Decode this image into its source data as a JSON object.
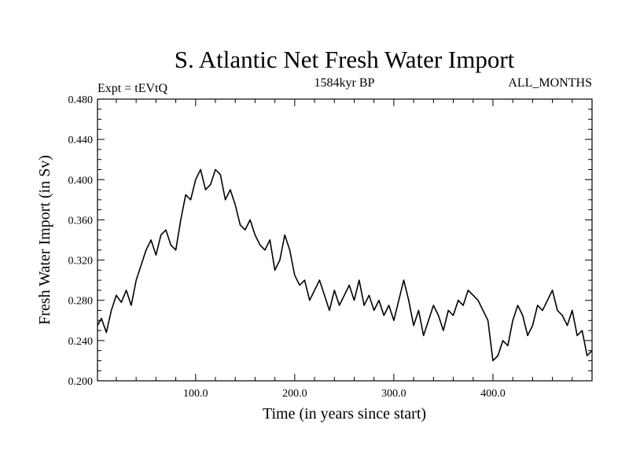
{
  "chart_data": {
    "type": "line",
    "title": "S. Atlantic Net Fresh Water Import",
    "left_annotation": "Expt = tEVtQ",
    "center_annotation": "1584kyr BP",
    "right_annotation": "ALL_MONTHS",
    "xlabel": "Time (in years since start)",
    "ylabel": "Fresh Water Import (in Sv)",
    "xlim": [
      1,
      500
    ],
    "ylim": [
      0.2,
      0.48
    ],
    "x_ticks": [
      100,
      200,
      300,
      400
    ],
    "x_tick_labels": [
      "100.0",
      "200.0",
      "300.0",
      "400.0"
    ],
    "y_ticks": [
      0.2,
      0.24,
      0.28,
      0.32,
      0.36,
      0.4,
      0.44,
      0.48
    ],
    "y_tick_labels": [
      "0.200",
      "0.240",
      "0.280",
      "0.320",
      "0.360",
      "0.400",
      "0.440",
      "0.480"
    ],
    "grid": false,
    "series": [
      {
        "name": "Fresh Water Import",
        "x": [
          1,
          5,
          10,
          15,
          20,
          25,
          30,
          35,
          40,
          45,
          50,
          55,
          60,
          65,
          70,
          75,
          80,
          85,
          90,
          95,
          100,
          105,
          110,
          115,
          120,
          125,
          130,
          135,
          140,
          145,
          150,
          155,
          160,
          165,
          170,
          175,
          180,
          185,
          190,
          195,
          200,
          205,
          210,
          215,
          220,
          225,
          230,
          235,
          240,
          245,
          250,
          255,
          260,
          265,
          270,
          275,
          280,
          285,
          290,
          295,
          300,
          305,
          310,
          315,
          320,
          325,
          330,
          335,
          340,
          345,
          350,
          355,
          360,
          365,
          370,
          375,
          380,
          385,
          390,
          395,
          400,
          405,
          410,
          415,
          420,
          425,
          430,
          435,
          440,
          445,
          450,
          455,
          460,
          465,
          470,
          475,
          480,
          485,
          490,
          495,
          500
        ],
        "values": [
          0.255,
          0.262,
          0.248,
          0.27,
          0.285,
          0.278,
          0.29,
          0.275,
          0.3,
          0.315,
          0.33,
          0.34,
          0.325,
          0.345,
          0.35,
          0.335,
          0.33,
          0.36,
          0.385,
          0.38,
          0.4,
          0.41,
          0.39,
          0.395,
          0.41,
          0.405,
          0.38,
          0.39,
          0.375,
          0.355,
          0.35,
          0.36,
          0.345,
          0.335,
          0.33,
          0.34,
          0.31,
          0.32,
          0.345,
          0.33,
          0.305,
          0.295,
          0.3,
          0.28,
          0.29,
          0.3,
          0.285,
          0.27,
          0.29,
          0.275,
          0.285,
          0.295,
          0.28,
          0.3,
          0.275,
          0.285,
          0.27,
          0.28,
          0.265,
          0.275,
          0.26,
          0.28,
          0.3,
          0.28,
          0.255,
          0.27,
          0.245,
          0.26,
          0.275,
          0.265,
          0.25,
          0.27,
          0.265,
          0.28,
          0.275,
          0.29,
          0.285,
          0.28,
          0.27,
          0.26,
          0.22,
          0.225,
          0.24,
          0.235,
          0.26,
          0.275,
          0.265,
          0.245,
          0.255,
          0.275,
          0.27,
          0.28,
          0.29,
          0.27,
          0.265,
          0.255,
          0.27,
          0.245,
          0.25,
          0.225,
          0.23
        ]
      }
    ]
  }
}
